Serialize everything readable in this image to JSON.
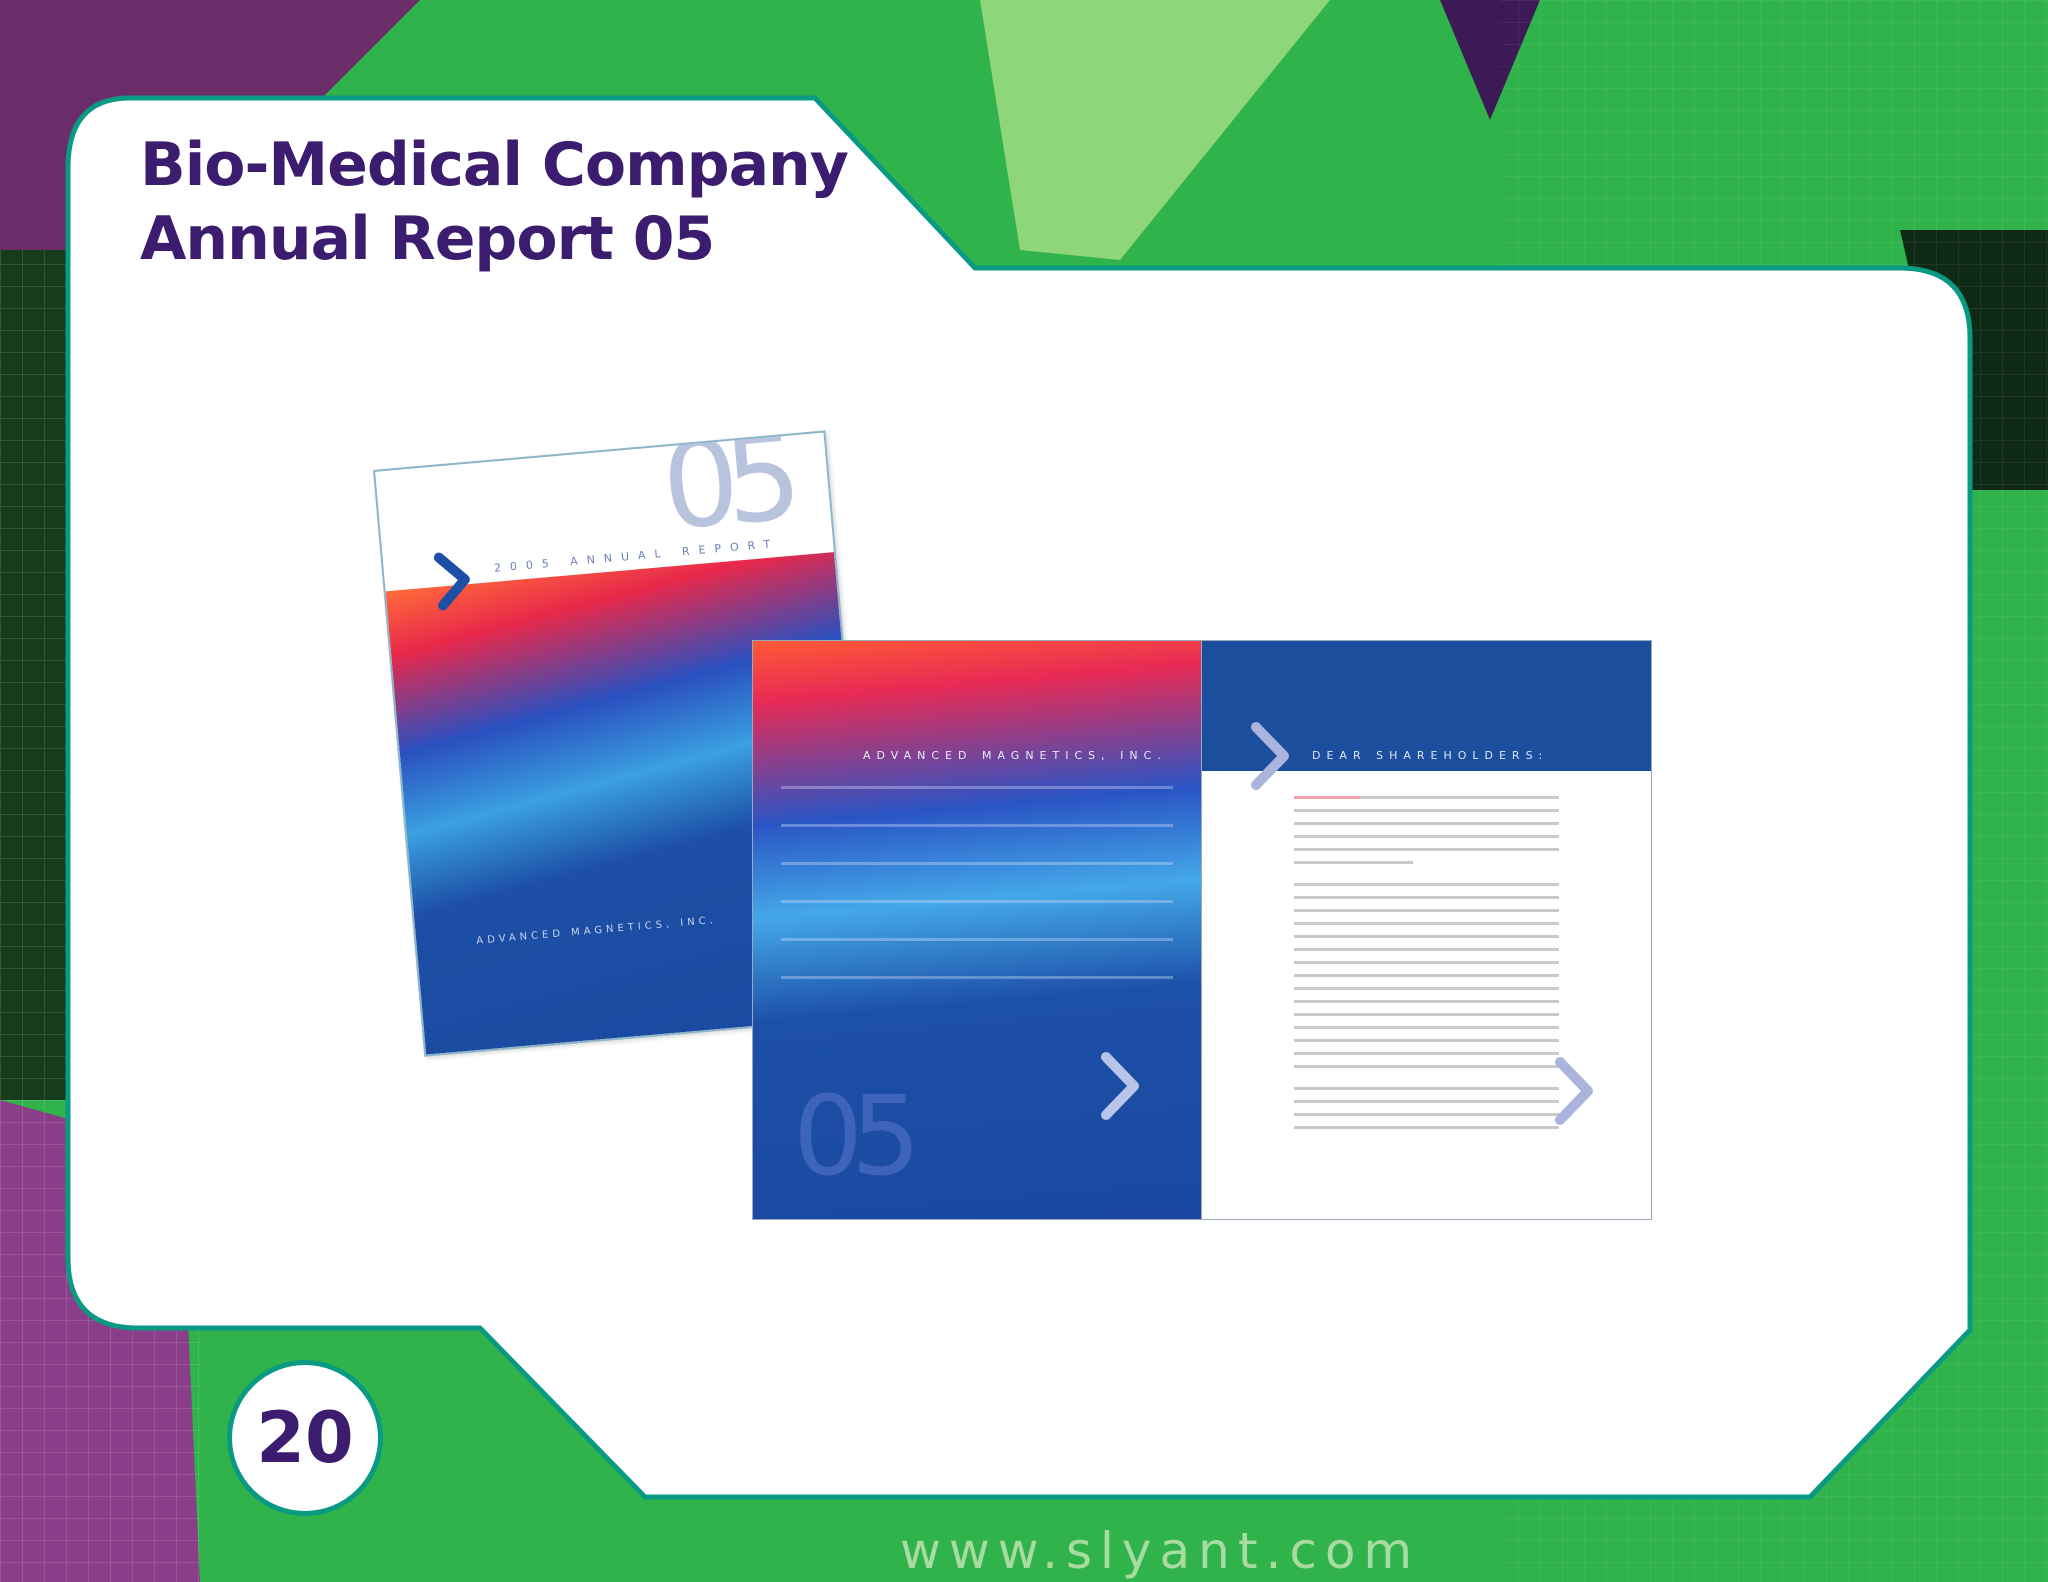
{
  "title": {
    "line1": "Bio-Medical Company",
    "line2": "Annual Report 05"
  },
  "page_number": "20",
  "footer_url": "www.slyant.com",
  "cover": {
    "big_number": "05",
    "subtitle": "2005 ANNUAL REPORT",
    "company": "ADVANCED MAGNETICS, INC."
  },
  "spread": {
    "left_company": "ADVANCED MAGNETICS, INC.",
    "left_number": "05",
    "right_heading": "DEAR SHAREHOLDERS:"
  },
  "icons": {
    "chevron": "chevron-right-icon"
  },
  "colors": {
    "title": "#3b1c6f",
    "panel_border": "#0a9a84",
    "background_green": "#2fb34a",
    "report_blue": "#1b4f9e"
  }
}
